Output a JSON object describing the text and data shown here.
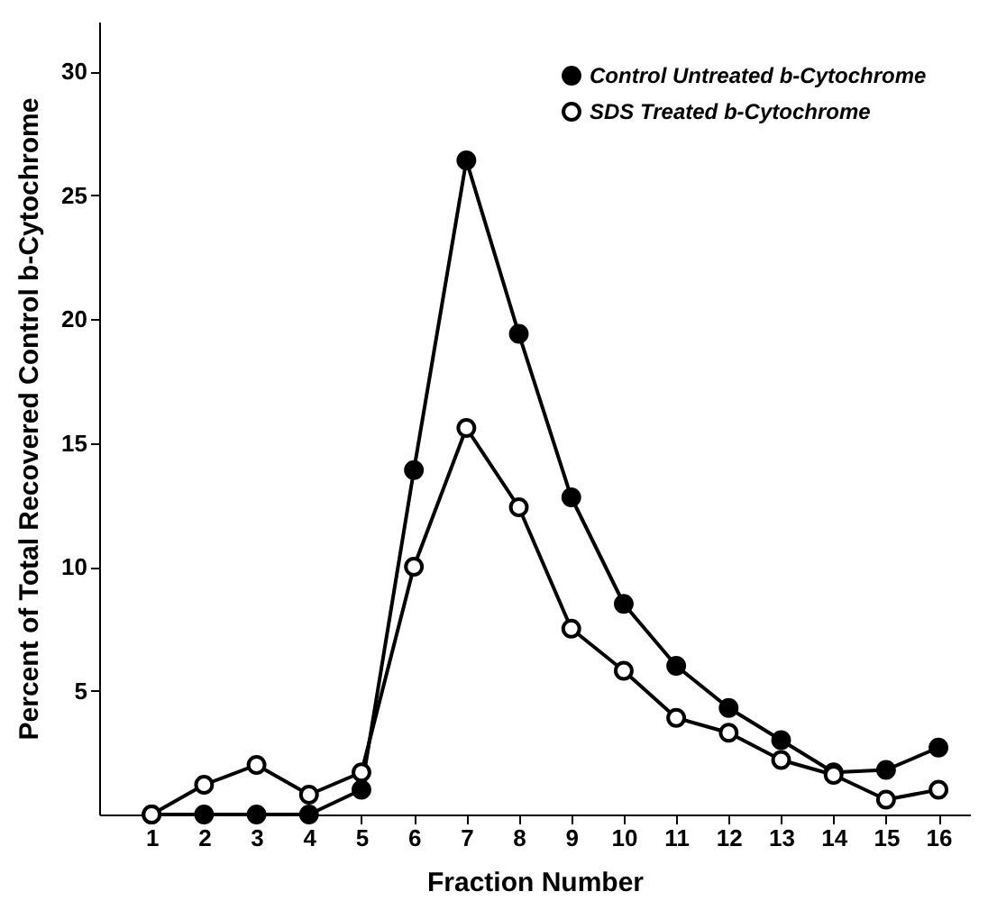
{
  "chart_data": {
    "type": "line",
    "xlabel": "Fraction Number",
    "ylabel": "Percent of Total Recovered Control b-Cytochrome",
    "x": [
      1,
      2,
      3,
      4,
      5,
      6,
      7,
      8,
      9,
      10,
      11,
      12,
      13,
      14,
      15,
      16
    ],
    "series": [
      {
        "name": "Control Untreated b-Cytochrome",
        "color": "#000000",
        "values": [
          0,
          0,
          0,
          0,
          1,
          13.9,
          26.4,
          19.4,
          12.8,
          8.5,
          6,
          4.3,
          3,
          1.7,
          1.8,
          2.7
        ]
      },
      {
        "name": "SDS Treated b-Cytochrome",
        "color": "#000000",
        "values": [
          0,
          1.2,
          2,
          0.8,
          1.7,
          10,
          15.6,
          12.4,
          7.5,
          5.8,
          3.9,
          3.3,
          2.2,
          1.6,
          0.6,
          1
        ]
      }
    ],
    "xlim": [
      0,
      16.6
    ],
    "xticks": [
      1,
      2,
      3,
      4,
      5,
      6,
      7,
      8,
      9,
      10,
      11,
      12,
      13,
      14,
      15,
      16
    ],
    "ylim": [
      0,
      32
    ],
    "yticks": [
      5,
      10,
      15,
      20,
      25,
      30
    ],
    "marker": "circle",
    "line_style": "solid",
    "legend": "top right",
    "grid": false
  }
}
